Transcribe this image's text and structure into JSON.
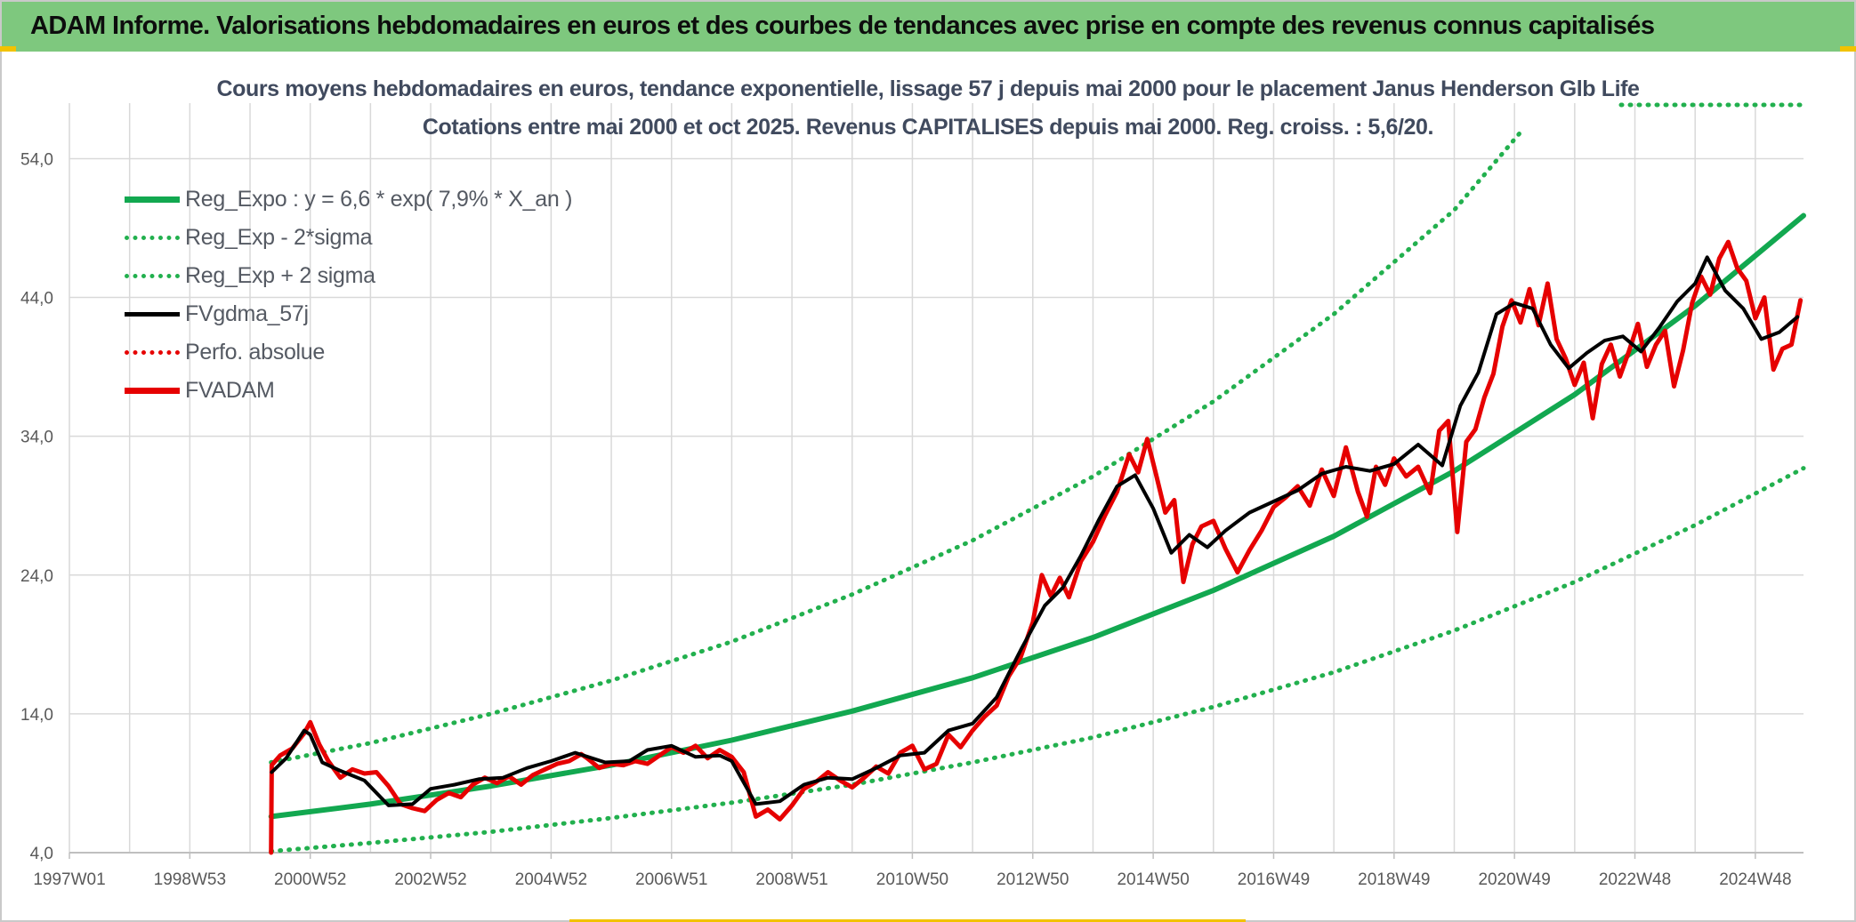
{
  "header": {
    "banner_title": "ADAM Informe. Valorisations hebdomadaires en euros et des courbes de tendances avec prise en compte des revenus connus capitalisés"
  },
  "colors": {
    "banner_bg": "#7ec87e",
    "reg_expo": "#12a850",
    "sigma_lines": "#22b04e",
    "fvgdma": "#000000",
    "fvadam": "#e60000",
    "perfo": "#e60000",
    "grid": "#d9d9d9"
  },
  "chart_data": {
    "type": "line",
    "title": "Cours moyens hebdomadaires en euros, tendance exponentielle, lissage 57 j depuis mai 2000 pour le placement Janus Henderson Glb Life",
    "subtitle": "Cotations entre mai 2000 et oct 2025. Revenus CAPITALISES depuis mai 2000. Reg. croiss. : 5,6/20.",
    "xlabel": "",
    "ylabel": "",
    "ylim": [
      4,
      58
    ],
    "yticks": [
      "4,0",
      "14,0",
      "24,0",
      "34,0",
      "44,0",
      "54,0"
    ],
    "ytick_values": [
      4,
      14,
      24,
      34,
      44,
      54
    ],
    "xlim": [
      1997.0,
      2025.8
    ],
    "xticks": [
      "1997W01",
      "1998W53",
      "2000W52",
      "2002W52",
      "2004W52",
      "2006W51",
      "2008W51",
      "2010W50",
      "2012W50",
      "2014W50",
      "2016W49",
      "2018W49",
      "2020W49",
      "2022W48",
      "2024W48"
    ],
    "xtick_values": [
      1997.0,
      1999.0,
      2001.0,
      2003.0,
      2005.0,
      2007.0,
      2009.0,
      2011.0,
      2013.0,
      2015.0,
      2017.0,
      2019.0,
      2021.0,
      2023.0,
      2025.0
    ],
    "grid": true,
    "legend_placement": "top-left",
    "legend": [
      {
        "label": "Reg_Expo : y = 6,6 * exp( 7,9% *  X_an )",
        "style": "solid-thick",
        "color": "#12a850"
      },
      {
        "label": "Reg_Exp - 2*sigma",
        "style": "dotted",
        "color": "#22b04e"
      },
      {
        "label": "Reg_Exp + 2 sigma",
        "style": "dotted",
        "color": "#22b04e"
      },
      {
        "label": "FVgdma_57j",
        "style": "solid",
        "color": "#000000"
      },
      {
        "label": "Perfo. absolue",
        "style": "dotted",
        "color": "#e60000"
      },
      {
        "label": "FVADAM",
        "style": "solid-thick",
        "color": "#e60000"
      }
    ],
    "series": [
      {
        "name": "Reg_Expo : y = 6,6 * exp( 7,9% *  X_an )",
        "x": [
          2000.35,
          2002.0,
          2004.0,
          2006.0,
          2008.0,
          2010.0,
          2012.0,
          2014.0,
          2016.0,
          2018.0,
          2020.0,
          2022.0,
          2024.0,
          2025.8
        ],
        "values": [
          6.6,
          7.5,
          8.8,
          10.3,
          12.1,
          14.2,
          16.6,
          19.5,
          22.9,
          26.8,
          31.5,
          37.0,
          43.4,
          49.9
        ]
      },
      {
        "name": "Reg_Exp - 2*sigma",
        "x": [
          2000.35,
          2002.0,
          2004.0,
          2006.0,
          2008.0,
          2010.0,
          2012.0,
          2014.0,
          2016.0,
          2018.0,
          2020.0,
          2022.0,
          2024.0,
          2025.8
        ],
        "values": [
          4.1,
          4.7,
          5.5,
          6.5,
          7.6,
          8.9,
          10.5,
          12.3,
          14.5,
          17.0,
          20.0,
          23.5,
          27.6,
          31.7
        ]
      },
      {
        "name": "Reg_Exp + 2 sigma",
        "x": [
          2000.35,
          2002.0,
          2004.0,
          2006.0,
          2008.0,
          2010.0,
          2012.0,
          2014.0,
          2016.0,
          2018.0,
          2020.0,
          2021.1
        ],
        "values": [
          10.5,
          11.9,
          14.0,
          16.4,
          19.2,
          22.6,
          26.5,
          31.1,
          36.5,
          42.8,
          50.3,
          55.9
        ]
      },
      {
        "name": "FVgdma_57j",
        "x": [
          2000.36,
          2000.6,
          2000.9,
          2001.0,
          2001.2,
          2001.5,
          2001.9,
          2002.3,
          2002.7,
          2003.0,
          2003.4,
          2003.8,
          2004.2,
          2004.6,
          2005.0,
          2005.4,
          2005.9,
          2006.3,
          2006.6,
          2007.0,
          2007.4,
          2007.8,
          2008.0,
          2008.4,
          2008.8,
          2009.2,
          2009.6,
          2010.0,
          2010.4,
          2010.8,
          2011.2,
          2011.6,
          2012.0,
          2012.4,
          2012.8,
          2013.2,
          2013.5,
          2013.8,
          2014.1,
          2014.4,
          2014.7,
          2015.0,
          2015.3,
          2015.6,
          2015.9,
          2016.2,
          2016.6,
          2017.0,
          2017.4,
          2017.8,
          2018.2,
          2018.6,
          2019.0,
          2019.4,
          2019.8,
          2020.1,
          2020.4,
          2020.7,
          2021.0,
          2021.3,
          2021.6,
          2021.9,
          2022.2,
          2022.5,
          2022.8,
          2023.1,
          2023.4,
          2023.7,
          2024.0,
          2024.2,
          2024.5,
          2024.8,
          2025.1,
          2025.4,
          2025.7
        ],
        "values": [
          9.8,
          10.8,
          12.8,
          12.5,
          10.5,
          9.9,
          9.2,
          7.4,
          7.5,
          8.6,
          8.9,
          9.3,
          9.4,
          10.1,
          10.6,
          11.2,
          10.5,
          10.6,
          11.4,
          11.7,
          10.9,
          11.0,
          10.6,
          7.5,
          7.7,
          8.9,
          9.4,
          9.3,
          10.1,
          11.0,
          11.2,
          12.8,
          13.3,
          15.2,
          18.6,
          21.8,
          23.1,
          25.4,
          28.0,
          30.4,
          31.2,
          28.8,
          25.6,
          26.9,
          26.0,
          27.2,
          28.5,
          29.3,
          30.1,
          31.3,
          31.8,
          31.5,
          32.0,
          33.4,
          31.9,
          36.2,
          38.6,
          42.8,
          43.6,
          43.2,
          40.6,
          38.9,
          40.0,
          40.9,
          41.2,
          40.1,
          41.8,
          43.7,
          45.0,
          46.9,
          44.5,
          43.2,
          41.0,
          41.5,
          42.6
        ]
      },
      {
        "name": "FVADAM",
        "x": [
          2000.35,
          2000.36,
          2000.5,
          2000.7,
          2000.9,
          2001.0,
          2001.15,
          2001.3,
          2001.5,
          2001.7,
          2001.9,
          2002.1,
          2002.3,
          2002.5,
          2002.7,
          2002.9,
          2003.1,
          2003.3,
          2003.5,
          2003.7,
          2003.9,
          2004.1,
          2004.3,
          2004.5,
          2004.7,
          2004.9,
          2005.1,
          2005.3,
          2005.5,
          2005.6,
          2005.8,
          2006.0,
          2006.2,
          2006.4,
          2006.6,
          2006.8,
          2007.0,
          2007.2,
          2007.4,
          2007.6,
          2007.8,
          2008.0,
          2008.2,
          2008.4,
          2008.6,
          2008.8,
          2009.0,
          2009.2,
          2009.4,
          2009.6,
          2009.8,
          2010.0,
          2010.2,
          2010.4,
          2010.6,
          2010.8,
          2011.0,
          2011.2,
          2011.4,
          2011.6,
          2011.8,
          2012.0,
          2012.2,
          2012.4,
          2012.6,
          2012.8,
          2013.0,
          2013.15,
          2013.3,
          2013.45,
          2013.6,
          2013.8,
          2014.0,
          2014.2,
          2014.4,
          2014.6,
          2014.75,
          2014.9,
          2015.05,
          2015.2,
          2015.35,
          2015.5,
          2015.65,
          2015.8,
          2016.0,
          2016.2,
          2016.4,
          2016.6,
          2016.8,
          2017.0,
          2017.2,
          2017.4,
          2017.6,
          2017.8,
          2018.0,
          2018.2,
          2018.4,
          2018.55,
          2018.7,
          2018.85,
          2019.0,
          2019.2,
          2019.4,
          2019.6,
          2019.75,
          2019.9,
          2020.05,
          2020.2,
          2020.35,
          2020.5,
          2020.65,
          2020.8,
          2020.95,
          2021.1,
          2021.25,
          2021.4,
          2021.55,
          2021.7,
          2021.85,
          2022.0,
          2022.15,
          2022.3,
          2022.45,
          2022.6,
          2022.75,
          2022.9,
          2023.05,
          2023.2,
          2023.35,
          2023.5,
          2023.65,
          2023.8,
          2023.95,
          2024.1,
          2024.25,
          2024.4,
          2024.55,
          2024.7,
          2024.85,
          2025.0,
          2025.15,
          2025.3,
          2025.45,
          2025.6,
          2025.75
        ],
        "values": [
          4.0,
          10.3,
          11.0,
          11.5,
          12.6,
          13.4,
          11.8,
          10.6,
          9.4,
          10.0,
          9.7,
          9.8,
          8.8,
          7.5,
          7.2,
          7.0,
          7.8,
          8.3,
          8.0,
          8.9,
          9.4,
          9.0,
          9.5,
          8.9,
          9.6,
          10.0,
          10.4,
          10.6,
          11.1,
          10.8,
          10.1,
          10.4,
          10.3,
          10.6,
          10.4,
          11.0,
          11.6,
          11.2,
          11.7,
          10.8,
          11.4,
          10.9,
          9.8,
          6.6,
          7.1,
          6.4,
          7.4,
          8.6,
          9.1,
          9.8,
          9.2,
          8.7,
          9.4,
          10.2,
          9.7,
          11.2,
          11.7,
          10.0,
          10.4,
          12.5,
          11.6,
          12.8,
          13.8,
          14.6,
          16.7,
          18.1,
          20.6,
          24.0,
          22.5,
          23.8,
          22.4,
          25.0,
          26.4,
          28.3,
          30.0,
          32.7,
          31.4,
          33.8,
          31.2,
          28.5,
          29.4,
          23.5,
          26.2,
          27.5,
          27.9,
          25.9,
          24.2,
          25.8,
          27.2,
          28.9,
          29.6,
          30.4,
          29.0,
          31.6,
          29.7,
          33.2,
          30.0,
          28.2,
          31.8,
          30.5,
          32.4,
          31.1,
          31.8,
          29.9,
          34.4,
          35.1,
          27.1,
          33.6,
          34.5,
          36.8,
          38.5,
          41.9,
          43.8,
          42.2,
          44.6,
          42.0,
          45.0,
          41.0,
          39.6,
          37.7,
          39.3,
          35.3,
          39.2,
          40.6,
          38.3,
          40.1,
          42.1,
          39.0,
          40.6,
          41.6,
          37.6,
          40.2,
          43.6,
          45.5,
          44.2,
          46.8,
          48.0,
          46.1,
          45.2,
          42.5,
          44.0,
          38.8,
          40.3,
          40.6,
          43.8
        ]
      }
    ]
  }
}
